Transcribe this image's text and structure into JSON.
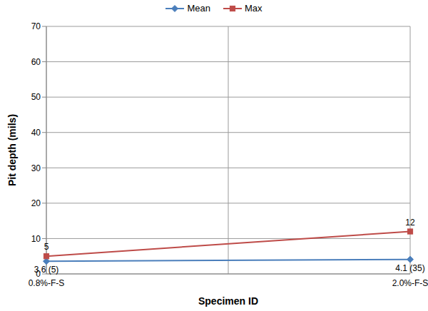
{
  "chart_data": {
    "type": "line",
    "categories": [
      "0.8%-F-S",
      "2.0%-F-S"
    ],
    "series": [
      {
        "name": "Mean",
        "color": "#4a7ebb",
        "marker": "diamond",
        "values": [
          3.6,
          4.1
        ],
        "value_labels": [
          "3.6 (5)",
          "4.1 (35)"
        ]
      },
      {
        "name": "Max",
        "color": "#be4b48",
        "marker": "square",
        "values": [
          5,
          12
        ]
      }
    ],
    "x_label": "Specimen ID",
    "y_label": "Pit depth (mils)",
    "ylim": [
      0,
      70
    ],
    "yticks": [
      0,
      10,
      20,
      30,
      40,
      50,
      60,
      70
    ],
    "grid": true,
    "legend": "top",
    "data_labels": true
  }
}
